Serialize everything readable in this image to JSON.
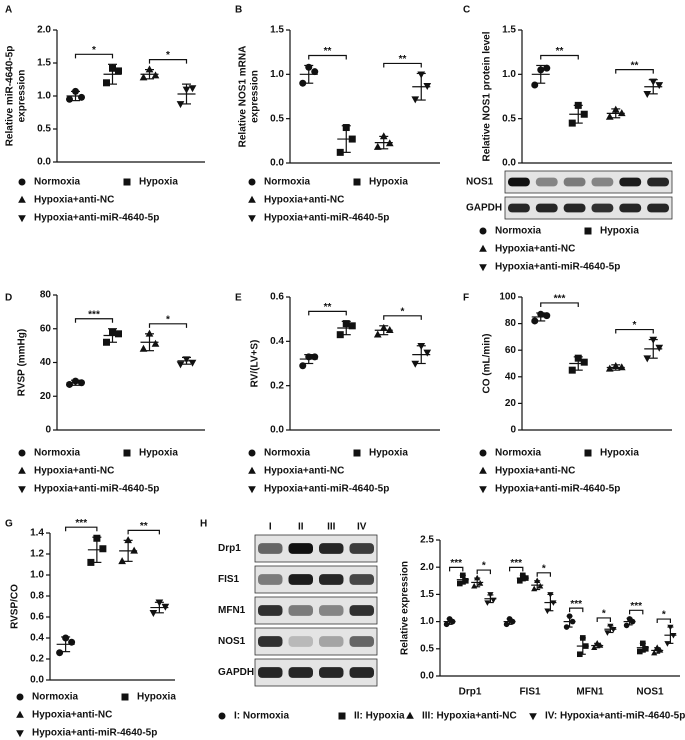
{
  "chart_data": [
    {
      "type": "dot",
      "panel": "A",
      "ylabel": [
        "Relative miR-4640-5p",
        "expression"
      ],
      "ylim": [
        0,
        2
      ],
      "yticks": [
        {
          "value": 0,
          "label": "0.0"
        },
        0.5,
        {
          "value": 1,
          "label": "1.0"
        },
        1.5,
        {
          "value": 2,
          "label": "2.0"
        }
      ],
      "series": [
        {
          "name": "Normoxia",
          "marker": "circle",
          "points": [
            0.95,
            1.07,
            0.98
          ],
          "mean": 1.0,
          "sd": 0.07
        },
        {
          "name": "Hypoxia",
          "marker": "square",
          "points": [
            1.2,
            1.42,
            1.38
          ],
          "mean": 1.33,
          "sd": 0.15,
          "sig": "*"
        },
        {
          "name": "Hypoxia+anti-NC",
          "marker": "triangle-up",
          "points": [
            1.28,
            1.4,
            1.31
          ],
          "mean": 1.33,
          "sd": 0.07
        },
        {
          "name": "Hypoxia+anti-miR-4640-5p",
          "marker": "triangle-down",
          "points": [
            0.88,
            1.1,
            1.12
          ],
          "mean": 1.03,
          "sd": 0.15,
          "sig": "*"
        }
      ]
    },
    {
      "type": "dot",
      "panel": "B",
      "ylabel": [
        "Relative NOS1 mRNA",
        "expression"
      ],
      "ylim": [
        0,
        1.5
      ],
      "yticks": [
        {
          "value": 0,
          "label": "0.0"
        },
        0.5,
        {
          "value": 1,
          "label": "1.0"
        },
        1.5
      ],
      "series": [
        {
          "name": "Normoxia",
          "marker": "circle",
          "points": [
            0.9,
            1.08,
            1.03
          ],
          "mean": 1.0,
          "sd": 0.1
        },
        {
          "name": "Hypoxia",
          "marker": "square",
          "points": [
            0.12,
            0.4,
            0.27
          ],
          "mean": 0.27,
          "sd": 0.15,
          "sig": "**"
        },
        {
          "name": "Hypoxia+anti-NC",
          "marker": "triangle-up",
          "points": [
            0.18,
            0.3,
            0.22
          ],
          "mean": 0.23,
          "sd": 0.07
        },
        {
          "name": "Hypoxia+anti-miR-4640-5p",
          "marker": "triangle-down",
          "points": [
            0.72,
            1.0,
            0.87
          ],
          "mean": 0.86,
          "sd": 0.15,
          "sig": "**"
        }
      ]
    },
    {
      "type": "dot",
      "panel": "C",
      "ylabel": [
        "Relative NOS1 protein level"
      ],
      "ylim": [
        0,
        1.5
      ],
      "yticks": [
        {
          "value": 0,
          "label": "0.0"
        },
        0.5,
        {
          "value": 1,
          "label": "1.0"
        },
        1.5
      ],
      "blot": {
        "rows": [
          "NOS1",
          "GAPDH"
        ]
      },
      "series": [
        {
          "name": "Normoxia",
          "marker": "circle",
          "points": [
            0.88,
            1.05,
            1.07
          ],
          "mean": 1.0,
          "sd": 0.1
        },
        {
          "name": "Hypoxia",
          "marker": "square",
          "points": [
            0.45,
            0.65,
            0.55
          ],
          "mean": 0.55,
          "sd": 0.1,
          "sig": "**"
        },
        {
          "name": "Hypoxia+anti-NC",
          "marker": "triangle-up",
          "points": [
            0.52,
            0.6,
            0.56
          ],
          "mean": 0.56,
          "sd": 0.05
        },
        {
          "name": "Hypoxia+anti-miR-4640-5p",
          "marker": "triangle-down",
          "points": [
            0.78,
            0.92,
            0.88
          ],
          "mean": 0.86,
          "sd": 0.08,
          "sig": "**"
        }
      ]
    },
    {
      "type": "dot",
      "panel": "D",
      "ylabel": [
        "RVSP (mmHg)"
      ],
      "ylim": [
        0,
        80
      ],
      "yticks": [
        0,
        20,
        40,
        60,
        80
      ],
      "series": [
        {
          "name": "Normoxia",
          "marker": "circle",
          "points": [
            27,
            29,
            28
          ],
          "mean": 28,
          "sd": 1.5
        },
        {
          "name": "Hypoxia",
          "marker": "square",
          "points": [
            52,
            58,
            57
          ],
          "mean": 56,
          "sd": 4,
          "sig": "***"
        },
        {
          "name": "Hypoxia+anti-NC",
          "marker": "triangle-up",
          "points": [
            48,
            57,
            51
          ],
          "mean": 52,
          "sd": 5
        },
        {
          "name": "Hypoxia+anti-miR-4640-5p",
          "marker": "triangle-down",
          "points": [
            39,
            42,
            40
          ],
          "mean": 41,
          "sd": 2,
          "sig": "*"
        }
      ]
    },
    {
      "type": "dot",
      "panel": "E",
      "ylabel": [
        "RV/(LV+S)"
      ],
      "ylim": [
        0,
        0.6
      ],
      "yticks": [
        {
          "value": 0,
          "label": "0.0"
        },
        0.2,
        0.4,
        0.6
      ],
      "series": [
        {
          "name": "Normoxia",
          "marker": "circle",
          "points": [
            0.29,
            0.33,
            0.33
          ],
          "mean": 0.32,
          "sd": 0.02
        },
        {
          "name": "Hypoxia",
          "marker": "square",
          "points": [
            0.43,
            0.48,
            0.47
          ],
          "mean": 0.46,
          "sd": 0.03,
          "sig": "**"
        },
        {
          "name": "Hypoxia+anti-NC",
          "marker": "triangle-up",
          "points": [
            0.43,
            0.46,
            0.45
          ],
          "mean": 0.45,
          "sd": 0.02
        },
        {
          "name": "Hypoxia+anti-miR-4640-5p",
          "marker": "triangle-down",
          "points": [
            0.3,
            0.38,
            0.35
          ],
          "mean": 0.34,
          "sd": 0.04,
          "sig": "*"
        }
      ]
    },
    {
      "type": "dot",
      "panel": "F",
      "ylabel": [
        "CO (mL/min)"
      ],
      "ylim": [
        0,
        100
      ],
      "yticks": [
        0,
        20,
        40,
        60,
        80,
        100
      ],
      "series": [
        {
          "name": "Normoxia",
          "marker": "circle",
          "points": [
            82,
            87,
            86
          ],
          "mean": 85,
          "sd": 3
        },
        {
          "name": "Hypoxia",
          "marker": "square",
          "points": [
            45,
            54,
            51
          ],
          "mean": 50,
          "sd": 5,
          "sig": "***"
        },
        {
          "name": "Hypoxia+anti-NC",
          "marker": "triangle-up",
          "points": [
            46,
            48,
            47
          ],
          "mean": 47,
          "sd": 2
        },
        {
          "name": "Hypoxia+anti-miR-4640-5p",
          "marker": "triangle-down",
          "points": [
            54,
            68,
            62
          ],
          "mean": 61,
          "sd": 7,
          "sig": "*"
        }
      ]
    },
    {
      "type": "dot",
      "panel": "G",
      "ylabel": [
        "RVSP/CO"
      ],
      "ylim": [
        0,
        1.4
      ],
      "yticks": [
        {
          "value": 0,
          "label": "0.0"
        },
        0.2,
        0.4,
        0.6,
        0.8,
        {
          "value": 1,
          "label": "1.0"
        },
        1.2,
        1.4
      ],
      "series": [
        {
          "name": "Normoxia",
          "marker": "circle",
          "points": [
            0.26,
            0.4,
            0.36
          ],
          "mean": 0.34,
          "sd": 0.07
        },
        {
          "name": "Hypoxia",
          "marker": "square",
          "points": [
            1.12,
            1.35,
            1.25
          ],
          "mean": 1.24,
          "sd": 0.12,
          "sig": "***"
        },
        {
          "name": "Hypoxia+anti-NC",
          "marker": "triangle-up",
          "points": [
            1.13,
            1.33,
            1.23
          ],
          "mean": 1.23,
          "sd": 0.1
        },
        {
          "name": "Hypoxia+anti-miR-4640-5p",
          "marker": "triangle-down",
          "points": [
            0.64,
            0.74,
            0.7
          ],
          "mean": 0.69,
          "sd": 0.05,
          "sig": "**"
        }
      ]
    },
    {
      "type": "grouped-dot",
      "panel": "H",
      "ylabel": [
        "Relative expression"
      ],
      "ylim": [
        0,
        2.5
      ],
      "yticks": [
        {
          "value": 0,
          "label": "0.0"
        },
        0.5,
        {
          "value": 1,
          "label": "1.0"
        },
        1.5,
        {
          "value": 2,
          "label": "2.0"
        },
        2.5
      ],
      "categories": [
        "Drp1",
        "FIS1",
        "MFN1",
        "NOS1"
      ],
      "blot": {
        "lanes": [
          "I",
          "II",
          "III",
          "IV"
        ],
        "rows": [
          "Drp1",
          "FIS1",
          "MFN1",
          "NOS1",
          "GAPDH"
        ]
      },
      "series": [
        {
          "name": "I: Normoxia",
          "marker": "circle",
          "points": [
            [
              0.95,
              1.05,
              1.0
            ],
            [
              0.95,
              1.05,
              1.0
            ],
            [
              0.9,
              1.1,
              1.0
            ],
            [
              0.93,
              1.05,
              1.0
            ]
          ],
          "mean": [
            1.0,
            1.0,
            1.0,
            1.0
          ],
          "sd": [
            0.05,
            0.05,
            0.1,
            0.06
          ]
        },
        {
          "name": "II: Hypoxia",
          "marker": "square",
          "points": [
            [
              1.7,
              1.85,
              1.75
            ],
            [
              1.75,
              1.85,
              1.8
            ],
            [
              0.4,
              0.7,
              0.55
            ],
            [
              0.45,
              0.6,
              0.5
            ]
          ],
          "mean": [
            1.77,
            1.8,
            0.55,
            0.52
          ],
          "sd": [
            0.08,
            0.05,
            0.15,
            0.08
          ],
          "sig": [
            "***",
            "***",
            "***",
            "***"
          ]
        },
        {
          "name": "III: Hypoxia+anti-NC",
          "marker": "triangle-up",
          "points": [
            [
              1.65,
              1.8,
              1.7
            ],
            [
              1.6,
              1.75,
              1.65
            ],
            [
              0.52,
              0.6,
              0.56
            ],
            [
              0.42,
              0.52,
              0.47
            ]
          ],
          "mean": [
            1.72,
            1.67,
            0.56,
            0.47
          ],
          "sd": [
            0.08,
            0.08,
            0.04,
            0.05
          ]
        },
        {
          "name": "IV: Hypoxia+anti-miR-4640-5p",
          "marker": "triangle-down",
          "points": [
            [
              1.35,
              1.5,
              1.4
            ],
            [
              1.2,
              1.5,
              1.35
            ],
            [
              0.8,
              0.92,
              0.86
            ],
            [
              0.6,
              0.9,
              0.75
            ]
          ],
          "mean": [
            1.42,
            1.35,
            0.86,
            0.75
          ],
          "sd": [
            0.07,
            0.15,
            0.06,
            0.15
          ],
          "sig": [
            "*",
            "*",
            "*",
            "*"
          ]
        }
      ]
    }
  ]
}
